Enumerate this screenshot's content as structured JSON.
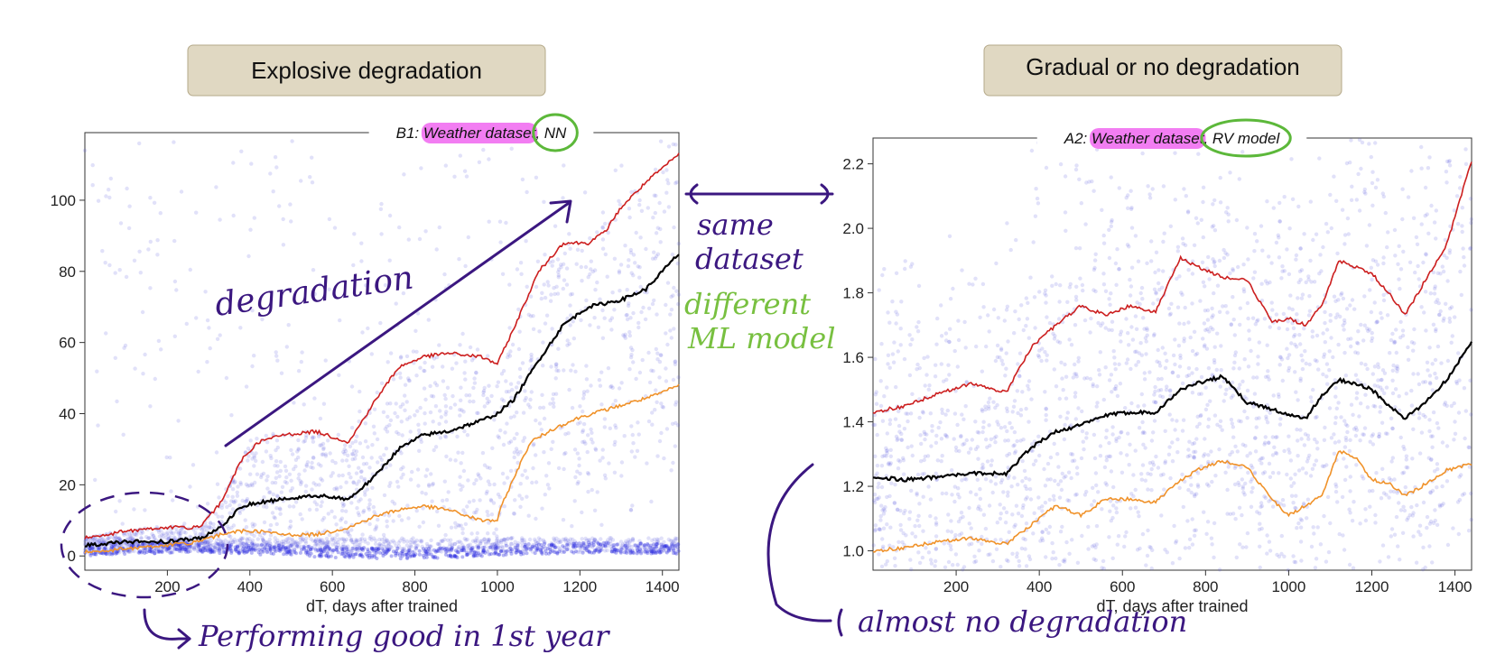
{
  "headers": {
    "left": "Explosive degradation",
    "right": "Gradual or no degradation"
  },
  "annotations": {
    "degradation": "degradation",
    "same_dataset_1": "same",
    "same_dataset_2": "dataset",
    "different_1": "different",
    "different_2": "ML model",
    "first_year": "Performing good in 1st year",
    "almost_no": "almost no degradation"
  },
  "colors": {
    "scatter": "#5a5ae0",
    "upper": "#cc1f1f",
    "median": "#000000",
    "lower": "#f0922a",
    "highlight": "#f27df2",
    "circle": "#5cb83a",
    "ink": "#3b1780",
    "green_text": "#78c040"
  },
  "chart_data": [
    {
      "type": "scatter",
      "title_prefix": "B1: ",
      "title_highlight": "Weather dataset",
      "title_sep": ", ",
      "title_circled": "NN",
      "xlabel": "dT, days after trained",
      "ylabel": "",
      "xlim": [
        0,
        1440
      ],
      "ylim": [
        -4,
        119
      ],
      "xticks": [
        200,
        400,
        600,
        800,
        1000,
        1200,
        1400
      ],
      "yticks": [
        0,
        20,
        40,
        60,
        80,
        100
      ],
      "grid": false,
      "series": [
        {
          "role": "upper",
          "x": [
            0,
            100,
            200,
            280,
            330,
            380,
            420,
            480,
            560,
            640,
            700,
            760,
            820,
            880,
            960,
            1000,
            1040,
            1100,
            1160,
            1220,
            1260,
            1300,
            1360,
            1440
          ],
          "y": [
            5,
            7,
            8,
            8,
            15,
            27,
            32,
            34,
            35,
            32,
            43,
            53,
            56,
            57,
            56,
            54,
            64,
            80,
            88,
            88,
            91,
            98,
            105,
            113
          ]
        },
        {
          "role": "median",
          "x": [
            0,
            100,
            200,
            280,
            330,
            380,
            420,
            480,
            560,
            640,
            700,
            760,
            820,
            880,
            960,
            1000,
            1040,
            1100,
            1160,
            1220,
            1260,
            1300,
            1360,
            1440
          ],
          "y": [
            3,
            4,
            4,
            5,
            8,
            14,
            15,
            16,
            17,
            16,
            22,
            30,
            34,
            35,
            38,
            40,
            44,
            55,
            65,
            70,
            71,
            72,
            75,
            85
          ]
        },
        {
          "role": "lower",
          "x": [
            0,
            100,
            200,
            280,
            330,
            380,
            420,
            480,
            560,
            640,
            700,
            760,
            820,
            880,
            960,
            1000,
            1010,
            1040,
            1080,
            1140,
            1200,
            1260,
            1320,
            1380,
            1440
          ],
          "y": [
            1,
            2,
            3,
            4,
            6,
            7,
            7,
            6,
            6,
            8,
            11,
            13,
            14,
            13,
            10,
            10,
            14,
            22,
            32,
            36,
            39,
            41,
            43,
            45,
            48
          ]
        }
      ]
    },
    {
      "type": "scatter",
      "title_prefix": "A2: ",
      "title_highlight": "Weather dataset",
      "title_sep": ", ",
      "title_circled": "RV model",
      "xlabel": "dT, days after trained",
      "ylabel": "",
      "xlim": [
        0,
        1440
      ],
      "ylim": [
        0.94,
        2.28
      ],
      "xticks": [
        200,
        400,
        600,
        800,
        1000,
        1200,
        1400
      ],
      "yticks": [
        1.0,
        1.2,
        1.4,
        1.6,
        1.8,
        2.0,
        2.2
      ],
      "grid": false,
      "series": [
        {
          "role": "upper",
          "x": [
            0,
            80,
            160,
            240,
            320,
            380,
            440,
            500,
            560,
            620,
            680,
            740,
            780,
            840,
            900,
            960,
            1000,
            1040,
            1080,
            1120,
            1160,
            1200,
            1240,
            1280,
            1320,
            1380,
            1440
          ],
          "y": [
            1.43,
            1.45,
            1.49,
            1.52,
            1.49,
            1.63,
            1.7,
            1.76,
            1.73,
            1.76,
            1.74,
            1.91,
            1.88,
            1.85,
            1.84,
            1.71,
            1.72,
            1.7,
            1.76,
            1.9,
            1.88,
            1.86,
            1.8,
            1.73,
            1.82,
            1.95,
            2.21
          ]
        },
        {
          "role": "median",
          "x": [
            0,
            80,
            160,
            240,
            320,
            380,
            440,
            500,
            560,
            620,
            680,
            740,
            780,
            840,
            900,
            960,
            1000,
            1040,
            1080,
            1120,
            1160,
            1200,
            1240,
            1280,
            1320,
            1380,
            1440
          ],
          "y": [
            1.23,
            1.22,
            1.23,
            1.24,
            1.24,
            1.32,
            1.37,
            1.39,
            1.42,
            1.43,
            1.43,
            1.5,
            1.52,
            1.54,
            1.46,
            1.44,
            1.42,
            1.41,
            1.48,
            1.53,
            1.52,
            1.5,
            1.45,
            1.41,
            1.45,
            1.53,
            1.65
          ]
        },
        {
          "role": "lower",
          "x": [
            0,
            80,
            160,
            240,
            320,
            380,
            440,
            500,
            560,
            620,
            680,
            740,
            780,
            840,
            900,
            960,
            1000,
            1040,
            1080,
            1120,
            1160,
            1200,
            1240,
            1280,
            1320,
            1380,
            1440
          ],
          "y": [
            1.0,
            1.01,
            1.03,
            1.04,
            1.02,
            1.08,
            1.14,
            1.11,
            1.16,
            1.16,
            1.15,
            1.22,
            1.25,
            1.28,
            1.26,
            1.16,
            1.11,
            1.14,
            1.17,
            1.31,
            1.29,
            1.22,
            1.21,
            1.17,
            1.2,
            1.25,
            1.27
          ]
        }
      ]
    }
  ]
}
